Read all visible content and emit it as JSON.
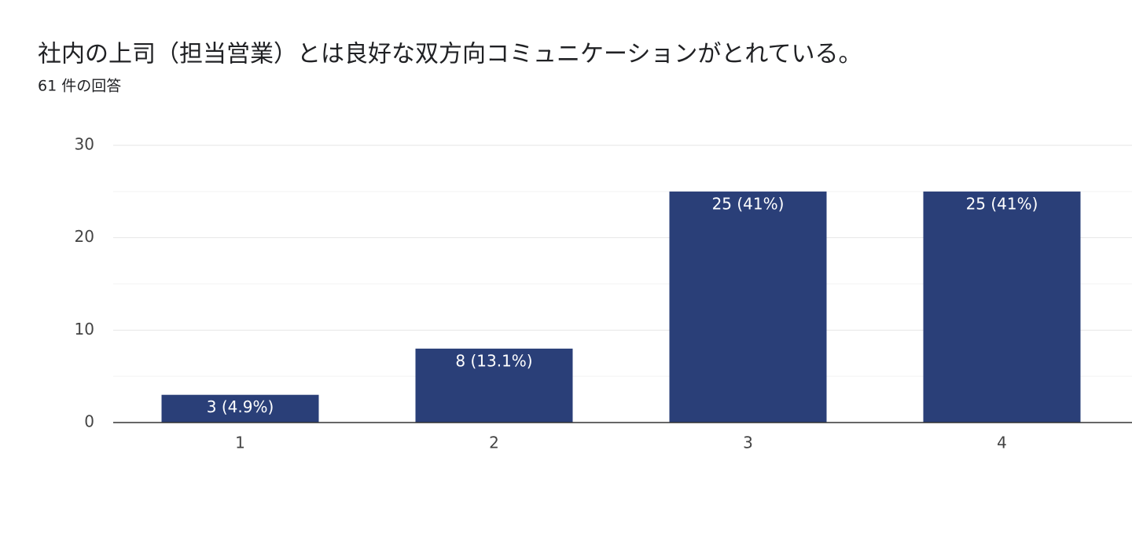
{
  "chart_data": {
    "type": "bar",
    "title": "社内の上司（担当営業）とは良好な双方向コミュニケーションがとれている。",
    "subtitle": "61 件の回答",
    "categories": [
      "1",
      "2",
      "3",
      "4"
    ],
    "values": [
      3,
      8,
      25,
      25
    ],
    "value_labels": [
      "3 (4.9%)",
      "8 (13.1%)",
      "25 (41%)",
      "25 (41%)"
    ],
    "color": "#2a3f78",
    "ylim": [
      0,
      30
    ],
    "yticks": [
      0,
      10,
      20,
      30
    ],
    "minor_yticks": [
      5,
      15,
      25
    ],
    "grid": true
  }
}
